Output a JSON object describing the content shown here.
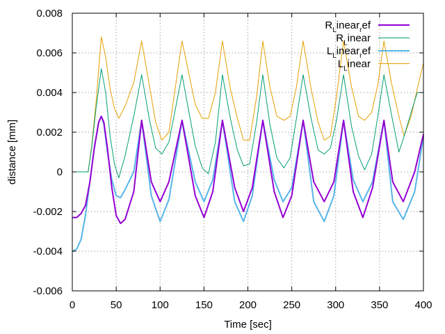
{
  "chart_data": {
    "type": "line",
    "xlabel": "Time [sec]",
    "ylabel": "distance [mm]",
    "xlim": [
      0,
      400
    ],
    "ylim": [
      -0.006,
      0.008
    ],
    "x_ticks": [
      "0",
      "50",
      "100",
      "150",
      "200",
      "250",
      "300",
      "350",
      "400"
    ],
    "y_ticks": [
      "-0.006",
      "-0.004",
      "-0.002",
      "0",
      "0.002",
      "0.004",
      "0.006",
      "0.008"
    ],
    "grid": true,
    "legend_position": "top-right",
    "series": [
      {
        "name": "R_Linear_ref",
        "legend_parts": [
          "R",
          "L",
          "inear",
          "r",
          "ef"
        ],
        "color": "#9400d3",
        "x": [
          0,
          5,
          10,
          15,
          20,
          25,
          30,
          33,
          36,
          40,
          45,
          50,
          55,
          60,
          70,
          79,
          90,
          100,
          110,
          125,
          140,
          150,
          160,
          171,
          185,
          195,
          205,
          217,
          230,
          240,
          250,
          263,
          275,
          287,
          298,
          309,
          320,
          331,
          342,
          355,
          365,
          377,
          390,
          400
        ],
        "y": [
          -0.0023,
          -0.0023,
          -0.0021,
          -0.0017,
          -0.0005,
          0.0012,
          0.0025,
          0.0028,
          0.0025,
          0.0012,
          -0.0008,
          -0.0022,
          -0.0026,
          -0.0024,
          -0.001,
          0.0026,
          -0.0005,
          -0.0015,
          -0.0005,
          0.0026,
          -0.0012,
          -0.0023,
          -0.001,
          0.0026,
          -0.0008,
          -0.002,
          -0.0008,
          0.0026,
          -0.001,
          -0.0023,
          -0.0012,
          0.0026,
          -0.0005,
          -0.0015,
          -0.0005,
          0.0026,
          -0.001,
          -0.0023,
          -0.0008,
          0.0026,
          -0.0005,
          -0.0015,
          0.0,
          0.0019
        ]
      },
      {
        "name": "R_Linear",
        "legend_parts": [
          "R",
          "L",
          "inear"
        ],
        "color": "#009e73",
        "x": [
          0,
          10,
          18,
          22,
          27,
          33,
          38,
          43,
          48,
          53,
          60,
          70,
          79,
          88,
          95,
          102,
          110,
          125,
          140,
          148,
          155,
          163,
          171,
          180,
          188,
          195,
          202,
          210,
          217,
          225,
          233,
          241,
          248,
          255,
          263,
          272,
          280,
          287,
          294,
          301,
          309,
          318,
          326,
          333,
          341,
          348,
          355,
          364,
          372,
          378,
          386,
          393,
          400
        ],
        "y": [
          0,
          0,
          0,
          0.0012,
          0.0032,
          0.0052,
          0.004,
          0.0018,
          0.0004,
          -0.0003,
          0.0008,
          0.0028,
          0.0049,
          0.0026,
          0.0012,
          0.0009,
          0.0015,
          0.0049,
          0.0013,
          0.0002,
          -0.0001,
          0.0015,
          0.0049,
          0.0027,
          0.0011,
          0.0003,
          0.0004,
          0.0025,
          0.0049,
          0.0024,
          0.0007,
          0.0002,
          0.0007,
          0.0026,
          0.0049,
          0.0027,
          0.0011,
          0.0009,
          0.0012,
          0.0026,
          0.0049,
          0.0023,
          0.0008,
          0.0001,
          0.0009,
          0.0028,
          0.0049,
          0.0028,
          0.001,
          0.0018,
          0.003,
          0.004,
          0.004
        ]
      },
      {
        "name": "L_Linear_ref",
        "legend_parts": [
          "L",
          "L",
          "inear",
          "r",
          "ef"
        ],
        "color": "#56b4e9",
        "x": [
          0,
          5,
          10,
          15,
          20,
          25,
          30,
          33,
          36,
          40,
          45,
          50,
          55,
          60,
          70,
          79,
          90,
          100,
          110,
          125,
          140,
          150,
          160,
          171,
          185,
          195,
          205,
          217,
          230,
          240,
          250,
          263,
          275,
          287,
          298,
          309,
          320,
          331,
          342,
          355,
          365,
          377,
          390,
          400
        ],
        "y": [
          -0.004,
          -0.0039,
          -0.0034,
          -0.0022,
          -0.0005,
          0.0012,
          0.0025,
          0.0028,
          0.0024,
          0.001,
          -0.0004,
          -0.0012,
          -0.0013,
          -0.0009,
          0.0,
          0.0026,
          -0.0012,
          -0.0025,
          -0.0014,
          0.0026,
          -0.0005,
          -0.0015,
          -0.0004,
          0.0026,
          -0.0015,
          -0.0025,
          -0.0012,
          0.0026,
          -0.0004,
          -0.0015,
          -0.0008,
          0.0026,
          -0.0015,
          -0.0025,
          -0.0012,
          0.0026,
          -0.0004,
          -0.0015,
          -0.0005,
          0.0026,
          -0.0015,
          -0.0024,
          -0.001,
          0.0018
        ]
      },
      {
        "name": "L_Linear",
        "legend_parts": [
          "L",
          "L",
          "inear"
        ],
        "color": "#e69f00",
        "x": [
          0,
          10,
          18,
          22,
          27,
          33,
          38,
          43,
          48,
          53,
          60,
          70,
          79,
          88,
          95,
          102,
          110,
          125,
          140,
          148,
          155,
          163,
          171,
          180,
          188,
          195,
          202,
          210,
          217,
          225,
          233,
          241,
          248,
          255,
          263,
          272,
          280,
          287,
          294,
          301,
          309,
          318,
          326,
          333,
          341,
          348,
          355,
          364,
          372,
          378,
          386,
          393,
          400
        ],
        "y": [
          0,
          0,
          0,
          0.0013,
          0.0035,
          0.0068,
          0.0058,
          0.0042,
          0.0032,
          0.0027,
          0.0033,
          0.0045,
          0.0066,
          0.0043,
          0.0025,
          0.0016,
          0.002,
          0.0066,
          0.0034,
          0.0027,
          0.0027,
          0.004,
          0.0066,
          0.0042,
          0.0027,
          0.0016,
          0.0016,
          0.0038,
          0.0066,
          0.0043,
          0.0028,
          0.0026,
          0.0028,
          0.0042,
          0.0066,
          0.0042,
          0.0025,
          0.0016,
          0.0018,
          0.0038,
          0.0066,
          0.0043,
          0.0028,
          0.0026,
          0.003,
          0.0044,
          0.0066,
          0.0044,
          0.0028,
          0.0018,
          0.0028,
          0.0042,
          0.0055
        ]
      }
    ]
  }
}
